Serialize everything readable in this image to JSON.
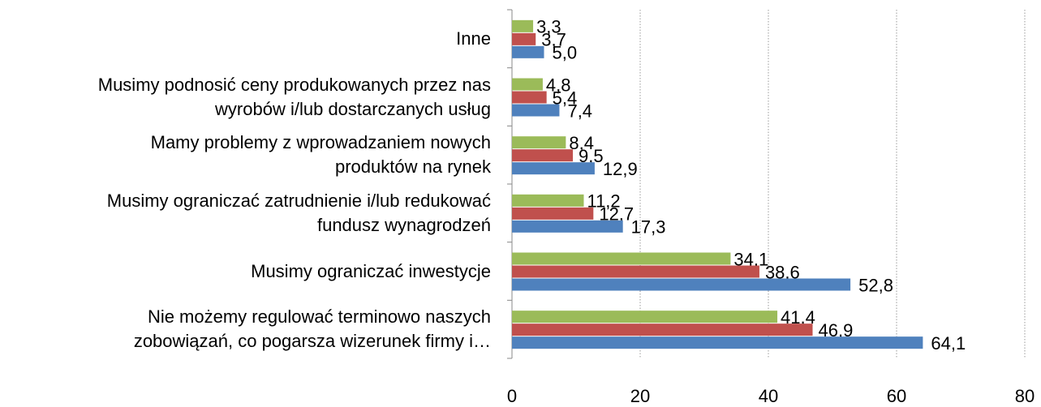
{
  "chart_data": {
    "type": "hbar",
    "categories": [
      "Inne",
      "Musimy podnosić ceny produkowanych przez nas\nwyrobów i/lub dostarczanych usług",
      "Mamy problemy z wprowadzaniem nowych\nproduktów na rynek",
      "Musimy ograniczać zatrudnienie i/lub redukować\nfundusz wynagrodzeń",
      "Musimy ograniczać inwestycje",
      "Nie możemy regulować terminowo naszych\nzobowiązań, co pogarsza wizerunek firmy i…"
    ],
    "series": [
      {
        "color": "#9bbb59",
        "values": [
          3.3,
          4.8,
          8.4,
          11.2,
          34.1,
          41.4
        ],
        "value_labels": [
          "3,3",
          "4,8",
          "8,4",
          "11,2",
          "34,1",
          "41,4"
        ]
      },
      {
        "color": "#c0504d",
        "values": [
          3.7,
          5.4,
          9.5,
          12.7,
          38.6,
          46.9
        ],
        "value_labels": [
          "3,7",
          "5,4",
          "9,5",
          "12,7",
          "38,6",
          "46,9"
        ]
      },
      {
        "color": "#4f81bd",
        "values": [
          5.0,
          7.4,
          12.9,
          17.3,
          52.8,
          64.1
        ],
        "value_labels": [
          "5,0",
          "7,4",
          "12,9",
          "17,3",
          "52,8",
          "64,1"
        ]
      }
    ],
    "xlim": [
      0,
      80
    ],
    "xticks": [
      0,
      20,
      40,
      60,
      80
    ],
    "grid": true
  }
}
